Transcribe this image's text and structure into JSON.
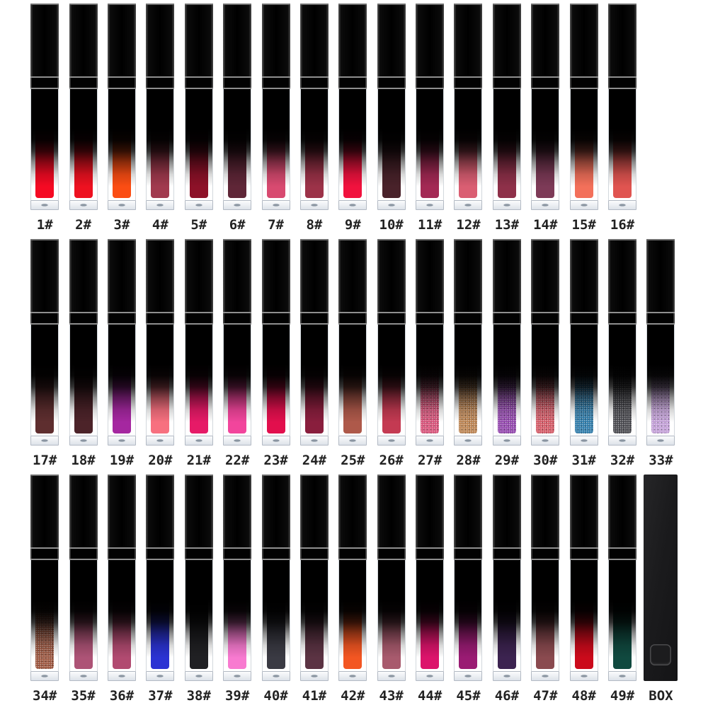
{
  "page": {
    "background": "#ffffff",
    "description_labels_suffix": "#"
  },
  "palette": {
    "tube_black": "#060606",
    "ring_line": "#8f8f8f",
    "base_fill": "#e4e9ef",
    "base_dot": "#8a95a1",
    "label_color": "#222222",
    "box_black": "#1b1b1d"
  },
  "rows": [
    {
      "items": [
        {
          "label": "1#",
          "color": "#f50a23",
          "glitter": false
        },
        {
          "label": "2#",
          "color": "#ee1120",
          "glitter": false
        },
        {
          "label": "3#",
          "color": "#fb4d13",
          "glitter": false
        },
        {
          "label": "4#",
          "color": "#a13a4e",
          "glitter": false
        },
        {
          "label": "5#",
          "color": "#8d1128",
          "glitter": false
        },
        {
          "label": "6#",
          "color": "#5f2637",
          "glitter": false
        },
        {
          "label": "7#",
          "color": "#d84a70",
          "glitter": false
        },
        {
          "label": "8#",
          "color": "#9c3248",
          "glitter": false
        },
        {
          "label": "9#",
          "color": "#f1123e",
          "glitter": false
        },
        {
          "label": "10#",
          "color": "#49222a",
          "glitter": false
        },
        {
          "label": "11#",
          "color": "#a32954",
          "glitter": false
        },
        {
          "label": "12#",
          "color": "#da5e72",
          "glitter": false
        },
        {
          "label": "13#",
          "color": "#8e3049",
          "glitter": false
        },
        {
          "label": "14#",
          "color": "#7d3a57",
          "glitter": false
        },
        {
          "label": "15#",
          "color": "#f3705a",
          "glitter": false
        },
        {
          "label": "16#",
          "color": "#e05450",
          "glitter": false
        }
      ]
    },
    {
      "items": [
        {
          "label": "17#",
          "color": "#5e2e2f",
          "glitter": false
        },
        {
          "label": "18#",
          "color": "#4c2329",
          "glitter": false
        },
        {
          "label": "19#",
          "color": "#a527a0",
          "glitter": false
        },
        {
          "label": "20#",
          "color": "#f7707f",
          "glitter": false
        },
        {
          "label": "21#",
          "color": "#e61a67",
          "glitter": false
        },
        {
          "label": "22#",
          "color": "#f2459c",
          "glitter": false
        },
        {
          "label": "23#",
          "color": "#e20f4d",
          "glitter": false
        },
        {
          "label": "24#",
          "color": "#891e3d",
          "glitter": false
        },
        {
          "label": "25#",
          "color": "#ae594a",
          "glitter": false
        },
        {
          "label": "26#",
          "color": "#c43a52",
          "glitter": false
        },
        {
          "label": "27#",
          "color": "#d8537a",
          "glitter": true
        },
        {
          "label": "28#",
          "color": "#bc8452",
          "glitter": true
        },
        {
          "label": "29#",
          "color": "#9347ae",
          "glitter": true
        },
        {
          "label": "30#",
          "color": "#d45a66",
          "glitter": true
        },
        {
          "label": "31#",
          "color": "#2f7cab",
          "glitter": true
        },
        {
          "label": "32#",
          "color": "#4a4a50",
          "glitter": true
        },
        {
          "label": "33#",
          "color": "#c3a0d8",
          "glitter": true
        }
      ]
    },
    {
      "items": [
        {
          "label": "34#",
          "color": "#9c563f",
          "glitter": true
        },
        {
          "label": "35#",
          "color": "#ad5376",
          "glitter": false
        },
        {
          "label": "36#",
          "color": "#b14a70",
          "glitter": false
        },
        {
          "label": "37#",
          "color": "#2b33d3",
          "glitter": false
        },
        {
          "label": "38#",
          "color": "#202023",
          "glitter": false
        },
        {
          "label": "39#",
          "color": "#f87ad0",
          "glitter": false
        },
        {
          "label": "40#",
          "color": "#3a3a43",
          "glitter": false
        },
        {
          "label": "41#",
          "color": "#5b3343",
          "glitter": false
        },
        {
          "label": "42#",
          "color": "#f35622",
          "glitter": false
        },
        {
          "label": "43#",
          "color": "#a85a6d",
          "glitter": false
        },
        {
          "label": "44#",
          "color": "#dc146b",
          "glitter": false
        },
        {
          "label": "45#",
          "color": "#9a1b73",
          "glitter": false
        },
        {
          "label": "46#",
          "color": "#3c2350",
          "glitter": false
        },
        {
          "label": "47#",
          "color": "#8a4a4f",
          "glitter": false
        },
        {
          "label": "48#",
          "color": "#cb0a1b",
          "glitter": false
        },
        {
          "label": "49#",
          "color": "#10493f",
          "glitter": false
        },
        {
          "label": "BOX",
          "type": "box"
        }
      ]
    }
  ]
}
